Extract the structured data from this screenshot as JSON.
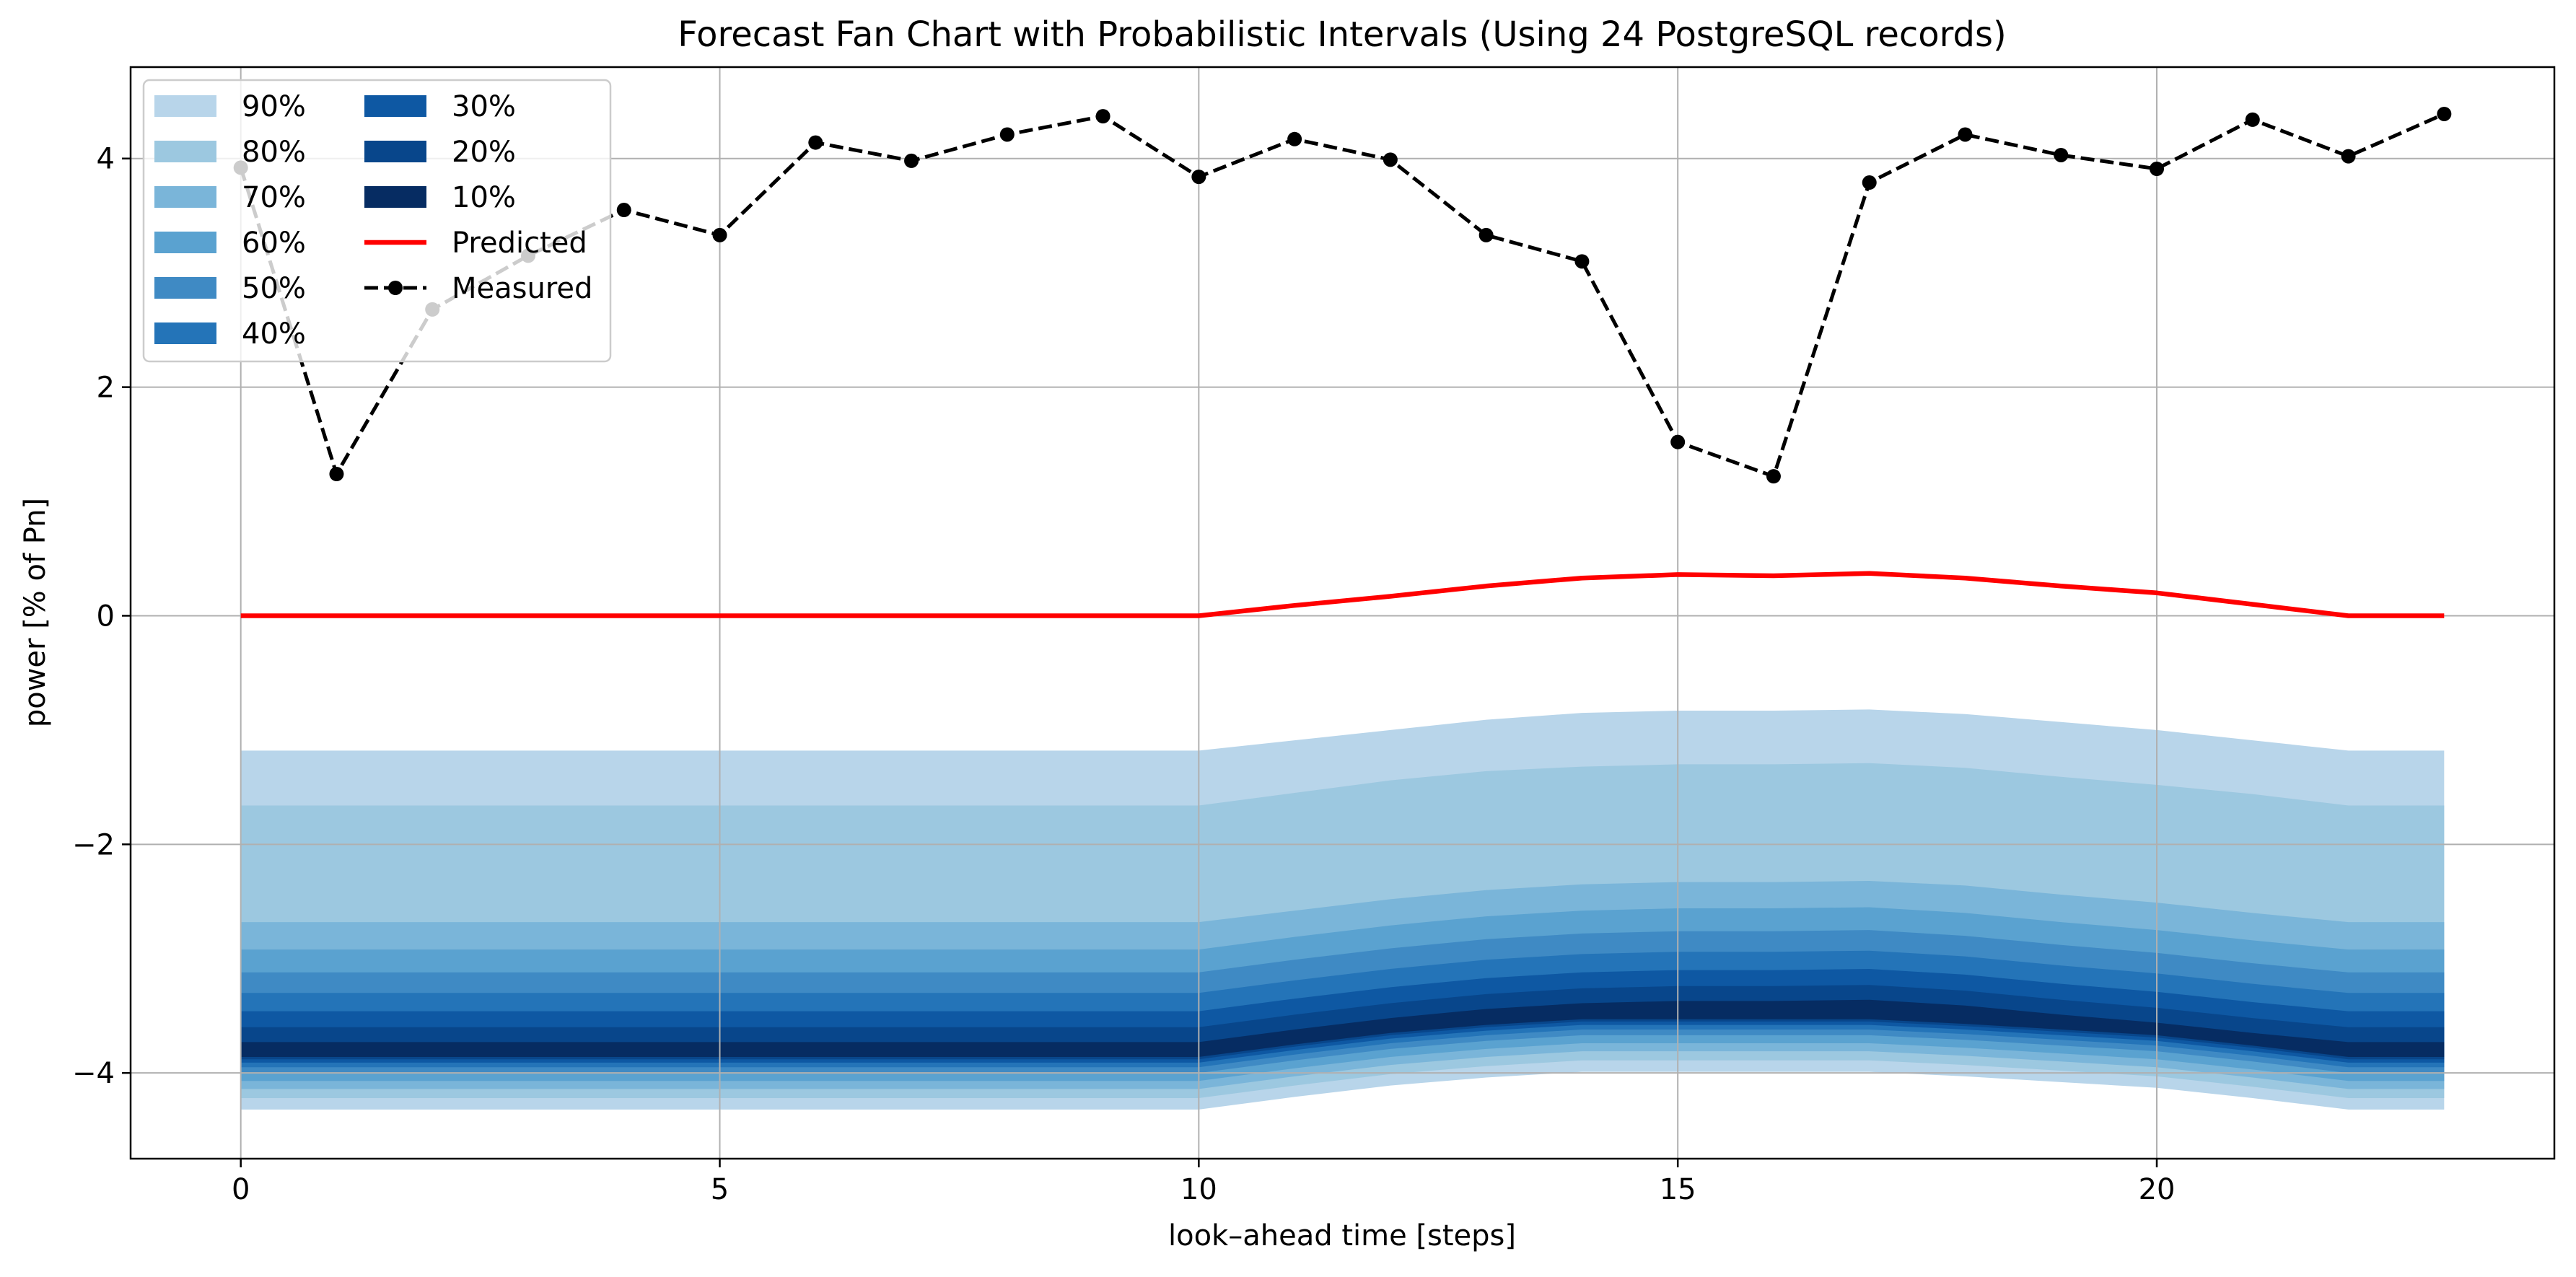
{
  "chart_data": {
    "type": "area",
    "title": "Forecast Fan Chart with Probabilistic Intervals (Using 24 PostgreSQL records)",
    "xlabel": "look–ahead time [steps]",
    "ylabel": "power [% of Pn]",
    "xlim": [
      -1.15,
      24.15
    ],
    "ylim": [
      -4.75,
      4.8
    ],
    "xticks": [
      0,
      5,
      10,
      15,
      20
    ],
    "yticks": [
      -4,
      -2,
      0,
      2,
      4
    ],
    "grid": true,
    "legend_position": "top-left",
    "x": [
      0,
      1,
      2,
      3,
      4,
      5,
      6,
      7,
      8,
      9,
      10,
      11,
      12,
      13,
      14,
      15,
      16,
      17,
      18,
      19,
      20,
      21,
      22,
      23
    ],
    "predicted": {
      "name": "Predicted",
      "color": "#ff0000",
      "values": [
        0,
        0,
        0,
        0,
        0,
        0,
        0,
        0,
        0,
        0,
        0,
        0.09,
        0.17,
        0.26,
        0.33,
        0.36,
        0.35,
        0.37,
        0.33,
        0.26,
        0.2,
        0.1,
        0.0,
        0.0
      ]
    },
    "measured": {
      "name": "Measured",
      "color": "#000000",
      "values": [
        3.92,
        1.24,
        2.68,
        3.15,
        3.55,
        3.33,
        4.14,
        3.98,
        4.21,
        4.37,
        3.84,
        4.17,
        3.99,
        3.33,
        3.1,
        1.52,
        1.22,
        3.79,
        4.21,
        4.03,
        3.91,
        4.34,
        4.02,
        4.39
      ]
    },
    "intervals": [
      {
        "name": "90%",
        "color": "#b8d5ea",
        "upper": [
          -1.18,
          -1.18,
          -1.18,
          -1.18,
          -1.18,
          -1.18,
          -1.18,
          -1.18,
          -1.18,
          -1.18,
          -1.18,
          -1.09,
          -1.0,
          -0.91,
          -0.85,
          -0.83,
          -0.83,
          -0.82,
          -0.86,
          -0.93,
          -1.0,
          -1.09,
          -1.18,
          -1.18
        ],
        "lower": [
          -4.32,
          -4.32,
          -4.32,
          -4.32,
          -4.32,
          -4.32,
          -4.32,
          -4.32,
          -4.32,
          -4.32,
          -4.32,
          -4.21,
          -4.11,
          -4.04,
          -3.99,
          -3.99,
          -3.99,
          -3.99,
          -4.03,
          -4.08,
          -4.13,
          -4.22,
          -4.32,
          -4.32
        ]
      },
      {
        "name": "80%",
        "color": "#9cc8e0",
        "upper": [
          -1.66,
          -1.66,
          -1.66,
          -1.66,
          -1.66,
          -1.66,
          -1.66,
          -1.66,
          -1.66,
          -1.66,
          -1.66,
          -1.55,
          -1.44,
          -1.36,
          -1.32,
          -1.3,
          -1.3,
          -1.29,
          -1.33,
          -1.41,
          -1.48,
          -1.56,
          -1.66,
          -1.66
        ],
        "lower": [
          -4.22,
          -4.22,
          -4.22,
          -4.22,
          -4.22,
          -4.22,
          -4.22,
          -4.22,
          -4.22,
          -4.22,
          -4.22,
          -4.11,
          -4.01,
          -3.94,
          -3.89,
          -3.89,
          -3.89,
          -3.89,
          -3.93,
          -3.98,
          -4.03,
          -4.12,
          -4.22,
          -4.22
        ]
      },
      {
        "name": "70%",
        "color": "#7ab5d9",
        "upper": [
          -2.68,
          -2.68,
          -2.68,
          -2.68,
          -2.68,
          -2.68,
          -2.68,
          -2.68,
          -2.68,
          -2.68,
          -2.68,
          -2.58,
          -2.48,
          -2.4,
          -2.35,
          -2.33,
          -2.33,
          -2.32,
          -2.36,
          -2.44,
          -2.51,
          -2.6,
          -2.68,
          -2.68
        ],
        "lower": [
          -4.14,
          -4.14,
          -4.14,
          -4.14,
          -4.14,
          -4.14,
          -4.14,
          -4.14,
          -4.14,
          -4.14,
          -4.14,
          -4.03,
          -3.93,
          -3.86,
          -3.81,
          -3.81,
          -3.81,
          -3.81,
          -3.85,
          -3.9,
          -3.95,
          -4.04,
          -4.14,
          -4.14
        ]
      },
      {
        "name": "60%",
        "color": "#5aa2d0",
        "upper": [
          -2.92,
          -2.92,
          -2.92,
          -2.92,
          -2.92,
          -2.92,
          -2.92,
          -2.92,
          -2.92,
          -2.92,
          -2.92,
          -2.81,
          -2.71,
          -2.63,
          -2.58,
          -2.56,
          -2.56,
          -2.55,
          -2.6,
          -2.68,
          -2.75,
          -2.84,
          -2.92,
          -2.92
        ],
        "lower": [
          -4.07,
          -4.07,
          -4.07,
          -4.07,
          -4.07,
          -4.07,
          -4.07,
          -4.07,
          -4.07,
          -4.07,
          -4.07,
          -3.96,
          -3.86,
          -3.79,
          -3.74,
          -3.74,
          -3.74,
          -3.74,
          -3.78,
          -3.83,
          -3.88,
          -3.97,
          -4.07,
          -4.07
        ]
      },
      {
        "name": "50%",
        "color": "#3f8ac4",
        "upper": [
          -3.12,
          -3.12,
          -3.12,
          -3.12,
          -3.12,
          -3.12,
          -3.12,
          -3.12,
          -3.12,
          -3.12,
          -3.12,
          -3.01,
          -2.91,
          -2.83,
          -2.78,
          -2.76,
          -2.76,
          -2.75,
          -2.8,
          -2.88,
          -2.95,
          -3.04,
          -3.12,
          -3.12
        ],
        "lower": [
          -4.0,
          -4.0,
          -4.0,
          -4.0,
          -4.0,
          -4.0,
          -4.0,
          -4.0,
          -4.0,
          -4.0,
          -4.0,
          -3.89,
          -3.79,
          -3.72,
          -3.67,
          -3.67,
          -3.67,
          -3.67,
          -3.71,
          -3.76,
          -3.81,
          -3.9,
          -4.0,
          -4.0
        ]
      },
      {
        "name": "40%",
        "color": "#2474b8",
        "upper": [
          -3.3,
          -3.3,
          -3.3,
          -3.3,
          -3.3,
          -3.3,
          -3.3,
          -3.3,
          -3.3,
          -3.3,
          -3.3,
          -3.19,
          -3.09,
          -3.01,
          -2.96,
          -2.94,
          -2.94,
          -2.93,
          -2.98,
          -3.06,
          -3.13,
          -3.22,
          -3.3,
          -3.3
        ],
        "lower": [
          -3.95,
          -3.95,
          -3.95,
          -3.95,
          -3.95,
          -3.95,
          -3.95,
          -3.95,
          -3.95,
          -3.95,
          -3.95,
          -3.84,
          -3.74,
          -3.67,
          -3.62,
          -3.62,
          -3.62,
          -3.62,
          -3.66,
          -3.71,
          -3.76,
          -3.85,
          -3.95,
          -3.95
        ]
      },
      {
        "name": "30%",
        "color": "#0e58a3",
        "upper": [
          -3.46,
          -3.46,
          -3.46,
          -3.46,
          -3.46,
          -3.46,
          -3.46,
          -3.46,
          -3.46,
          -3.46,
          -3.46,
          -3.35,
          -3.25,
          -3.17,
          -3.12,
          -3.1,
          -3.1,
          -3.09,
          -3.14,
          -3.22,
          -3.29,
          -3.38,
          -3.46,
          -3.46
        ],
        "lower": [
          -3.91,
          -3.91,
          -3.91,
          -3.91,
          -3.91,
          -3.91,
          -3.91,
          -3.91,
          -3.91,
          -3.91,
          -3.91,
          -3.8,
          -3.7,
          -3.63,
          -3.58,
          -3.58,
          -3.58,
          -3.58,
          -3.62,
          -3.67,
          -3.72,
          -3.81,
          -3.91,
          -3.91
        ]
      },
      {
        "name": "20%",
        "color": "#08468b",
        "upper": [
          -3.6,
          -3.6,
          -3.6,
          -3.6,
          -3.6,
          -3.6,
          -3.6,
          -3.6,
          -3.6,
          -3.6,
          -3.6,
          -3.49,
          -3.39,
          -3.31,
          -3.26,
          -3.24,
          -3.24,
          -3.23,
          -3.28,
          -3.36,
          -3.43,
          -3.52,
          -3.6,
          -3.6
        ],
        "lower": [
          -3.88,
          -3.88,
          -3.88,
          -3.88,
          -3.88,
          -3.88,
          -3.88,
          -3.88,
          -3.88,
          -3.88,
          -3.88,
          -3.77,
          -3.67,
          -3.6,
          -3.55,
          -3.55,
          -3.55,
          -3.55,
          -3.59,
          -3.64,
          -3.69,
          -3.78,
          -3.88,
          -3.88
        ]
      },
      {
        "name": "10%",
        "color": "#062c62",
        "upper": [
          -3.73,
          -3.73,
          -3.73,
          -3.73,
          -3.73,
          -3.73,
          -3.73,
          -3.73,
          -3.73,
          -3.73,
          -3.73,
          -3.62,
          -3.52,
          -3.44,
          -3.39,
          -3.37,
          -3.37,
          -3.36,
          -3.41,
          -3.49,
          -3.56,
          -3.65,
          -3.73,
          -3.73
        ],
        "lower": [
          -3.86,
          -3.86,
          -3.86,
          -3.86,
          -3.86,
          -3.86,
          -3.86,
          -3.86,
          -3.86,
          -3.86,
          -3.86,
          -3.75,
          -3.65,
          -3.58,
          -3.53,
          -3.53,
          -3.53,
          -3.53,
          -3.57,
          -3.62,
          -3.67,
          -3.76,
          -3.86,
          -3.86
        ]
      }
    ]
  }
}
